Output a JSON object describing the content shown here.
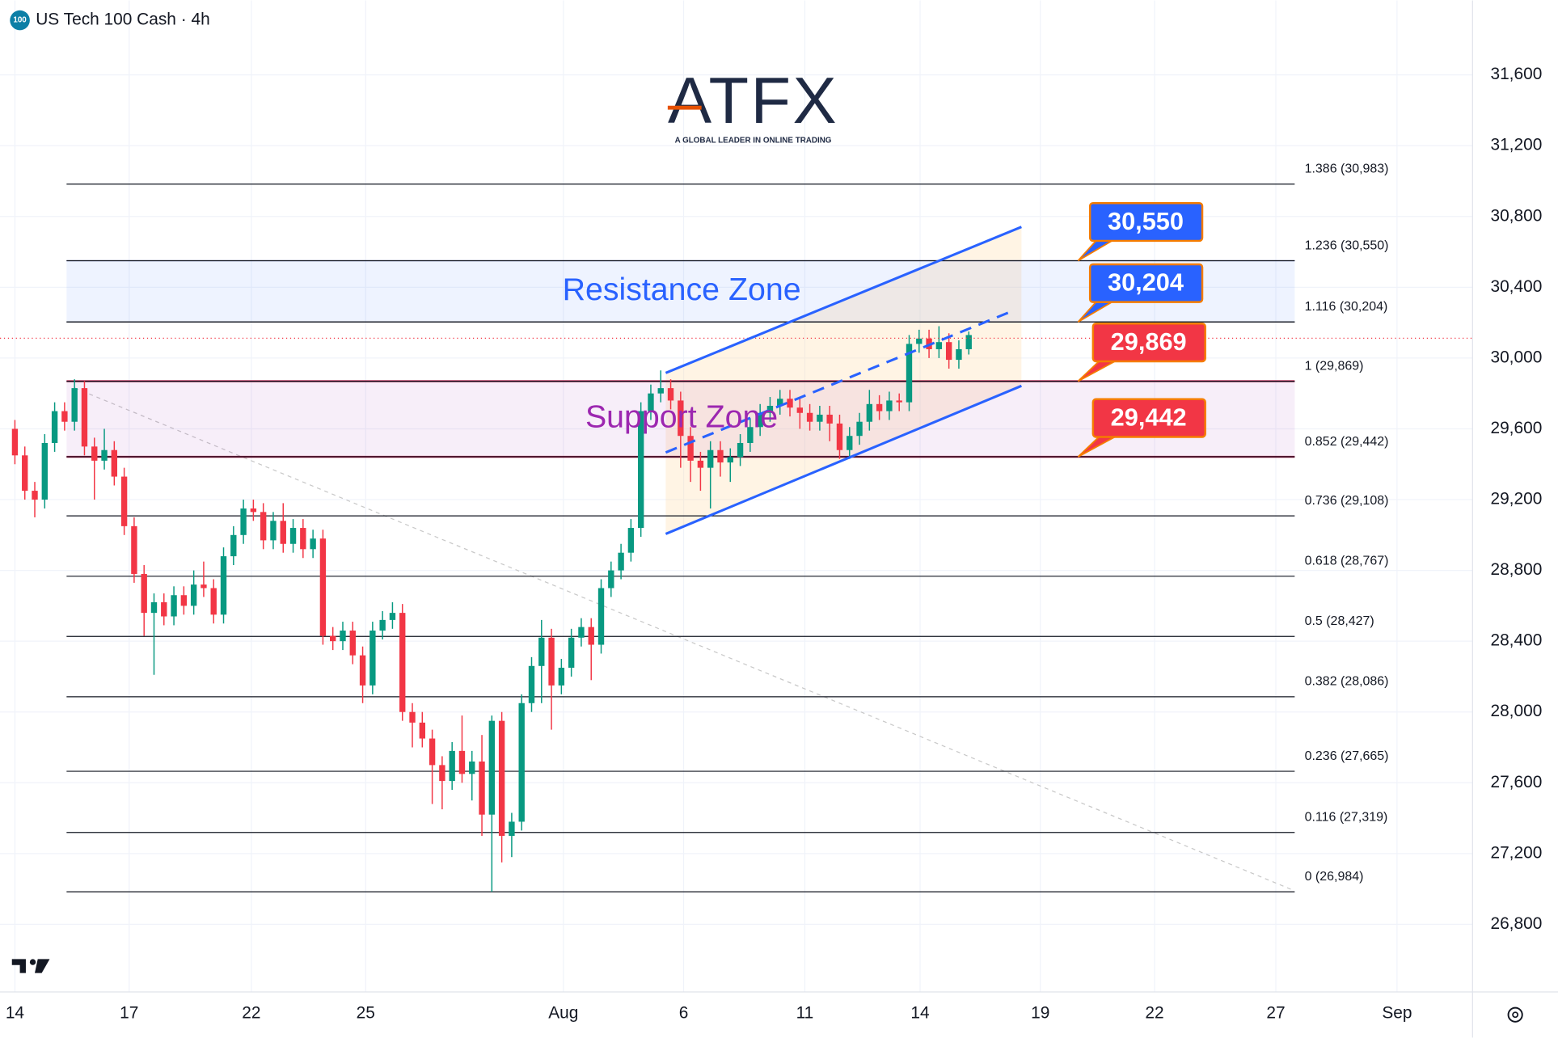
{
  "chart_data": {
    "type": "candlestick",
    "title": "US Tech 100 Cash · 4h",
    "icon_text": "100",
    "up_color": "#089981",
    "down_color": "#f23645",
    "x": [
      0,
      1,
      2,
      3,
      4,
      5,
      6,
      7,
      8,
      9,
      10,
      11,
      12,
      13,
      14,
      15,
      16,
      17,
      18,
      19,
      20,
      21,
      22,
      23,
      24,
      25,
      26,
      27,
      28,
      29,
      30,
      31,
      32,
      33,
      34,
      35,
      36,
      37,
      38,
      39,
      40,
      41,
      42,
      43,
      44,
      45,
      46,
      47,
      48,
      49,
      50,
      51,
      52,
      53,
      54,
      55,
      56,
      57,
      58,
      59,
      60,
      61,
      62,
      63,
      64,
      65,
      66,
      67,
      68,
      69,
      70,
      71,
      72,
      73,
      74,
      75,
      76,
      77,
      78,
      79,
      80,
      81,
      82,
      83,
      84,
      85,
      86,
      87,
      88,
      89,
      90,
      91,
      92,
      93,
      94,
      95,
      96
    ],
    "open": [
      29600,
      29450,
      29250,
      29200,
      29520,
      29700,
      29640,
      29830,
      29500,
      29420,
      29480,
      29330,
      29050,
      28780,
      28560,
      28620,
      28540,
      28660,
      28600,
      28720,
      28700,
      28550,
      28880,
      29000,
      29150,
      29130,
      28970,
      29080,
      28950,
      29040,
      28920,
      28980,
      28430,
      28400,
      28460,
      28320,
      28150,
      28460,
      28520,
      28560,
      28000,
      27940,
      27850,
      27700,
      27610,
      27780,
      27650,
      27720,
      27420,
      27950,
      27300,
      27380,
      28050,
      28260,
      28420,
      28150,
      28250,
      28420,
      28480,
      28380,
      28700,
      28800,
      28900,
      29040,
      29700,
      29800,
      29830,
      29760,
      29560,
      29420,
      29380,
      29480,
      29410,
      29440,
      29520,
      29610,
      29690,
      29730,
      29770,
      29720,
      29690,
      29640,
      29680,
      29630,
      29480,
      29560,
      29640,
      29740,
      29700,
      29760,
      29750,
      30080,
      30110,
      30050,
      30090,
      29990,
      30050
    ],
    "high": [
      29650,
      29500,
      29300,
      29570,
      29750,
      29750,
      29880,
      29870,
      29550,
      29600,
      29530,
      29380,
      29100,
      28830,
      28670,
      28670,
      28710,
      28710,
      28800,
      28850,
      28750,
      28930,
      29050,
      29200,
      29200,
      29180,
      29130,
      29180,
      29090,
      29090,
      29030,
      29030,
      28480,
      28510,
      28510,
      28370,
      28510,
      28570,
      28620,
      28610,
      28050,
      28000,
      27900,
      27750,
      27830,
      27980,
      27780,
      27870,
      27980,
      28000,
      27430,
      28100,
      28310,
      28520,
      28470,
      28300,
      28470,
      28530,
      28530,
      28750,
      28850,
      28950,
      29090,
      29750,
      29850,
      29930,
      29880,
      29810,
      29610,
      29470,
      29530,
      29530,
      29490,
      29570,
      29660,
      29740,
      29780,
      29820,
      29820,
      29770,
      29740,
      29730,
      29730,
      29680,
      29610,
      29690,
      29820,
      29790,
      29810,
      29800,
      30130,
      30160,
      30160,
      30180,
      30140,
      30100,
      30150
    ],
    "low": [
      29400,
      29200,
      29100,
      29150,
      29470,
      29590,
      29590,
      29450,
      29200,
      29370,
      29280,
      29000,
      28730,
      28430,
      28210,
      28490,
      28490,
      28550,
      28550,
      28650,
      28500,
      28500,
      28830,
      28950,
      29080,
      28920,
      28920,
      28900,
      28900,
      28870,
      28870,
      28380,
      28350,
      28350,
      28270,
      28050,
      28100,
      28410,
      28470,
      27950,
      27800,
      27800,
      27480,
      27450,
      27560,
      27600,
      27500,
      27300,
      26984,
      27150,
      27180,
      27330,
      28000,
      28050,
      27900,
      28100,
      28200,
      28370,
      28180,
      28330,
      28650,
      28750,
      28850,
      28990,
      29650,
      29750,
      29710,
      29380,
      29300,
      29250,
      29150,
      29330,
      29300,
      29390,
      29470,
      29560,
      29640,
      29680,
      29670,
      29600,
      29590,
      29590,
      29530,
      29430,
      29430,
      29510,
      29590,
      29650,
      29650,
      29700,
      29700,
      30030,
      30000,
      30000,
      29940,
      29940,
      30020
    ],
    "close": [
      29450,
      29250,
      29200,
      29520,
      29700,
      29640,
      29830,
      29500,
      29420,
      29480,
      29330,
      29050,
      28780,
      28560,
      28620,
      28540,
      28660,
      28600,
      28720,
      28700,
      28550,
      28880,
      29000,
      29150,
      29130,
      28970,
      29080,
      28950,
      29040,
      28920,
      28980,
      28430,
      28400,
      28460,
      28320,
      28150,
      28460,
      28520,
      28560,
      28000,
      27940,
      27850,
      27700,
      27610,
      27780,
      27650,
      27720,
      27420,
      27950,
      27300,
      27380,
      28050,
      28260,
      28420,
      28150,
      28250,
      28420,
      28480,
      28380,
      28700,
      28800,
      28900,
      29040,
      29700,
      29800,
      29830,
      29760,
      29560,
      29420,
      29380,
      29480,
      29410,
      29440,
      29520,
      29610,
      29690,
      29730,
      29770,
      29720,
      29690,
      29640,
      29680,
      29630,
      29480,
      29560,
      29640,
      29740,
      29700,
      29760,
      29750,
      30080,
      30110,
      30050,
      30090,
      29990,
      30050,
      30130
    ],
    "xlim": [
      -1.5,
      146.5
    ],
    "xticks": [
      {
        "value": 0,
        "label": "14"
      },
      {
        "value": 11.5,
        "label": "17"
      },
      {
        "value": 23.8,
        "label": "22"
      },
      {
        "value": 35.3,
        "label": "25"
      },
      {
        "value": 55.2,
        "label": "Aug"
      },
      {
        "value": 67.3,
        "label": "6"
      },
      {
        "value": 79.5,
        "label": "11"
      },
      {
        "value": 91.1,
        "label": "14"
      },
      {
        "value": 103.2,
        "label": "19"
      },
      {
        "value": 114.7,
        "label": "22"
      },
      {
        "value": 126.9,
        "label": "27"
      },
      {
        "value": 139.1,
        "label": "Sep"
      }
    ],
    "ylim": [
      26407,
      32021
    ],
    "yticks": [
      {
        "value": 26800,
        "label": "26,800"
      },
      {
        "value": 27200,
        "label": "27,200"
      },
      {
        "value": 27600,
        "label": "27,600"
      },
      {
        "value": 28000,
        "label": "28,000"
      },
      {
        "value": 28400,
        "label": "28,400"
      },
      {
        "value": 28800,
        "label": "28,800"
      },
      {
        "value": 29200,
        "label": "29,200"
      },
      {
        "value": 29600,
        "label": "29,600"
      },
      {
        "value": 30000,
        "label": "30,000"
      },
      {
        "value": 30400,
        "label": "30,400"
      },
      {
        "value": 30800,
        "label": "30,800"
      },
      {
        "value": 31200,
        "label": "31,200"
      },
      {
        "value": 31600,
        "label": "31,600"
      }
    ],
    "grid": true,
    "fib_levels": [
      {
        "value": 30983,
        "label": "1.386 (30,983)"
      },
      {
        "value": 30550,
        "label": "1.236 (30,550)"
      },
      {
        "value": 30204,
        "label": "1.116 (30,204)"
      },
      {
        "value": 29869,
        "label": "1 (29,869)"
      },
      {
        "value": 29442,
        "label": "0.852 (29,442)"
      },
      {
        "value": 29108,
        "label": "0.736 (29,108)"
      },
      {
        "value": 28767,
        "label": "0.618 (28,767)"
      },
      {
        "value": 28427,
        "label": "0.5 (28,427)"
      },
      {
        "value": 28086,
        "label": "0.382 (28,086)"
      },
      {
        "value": 27665,
        "label": "0.236 (27,665)"
      },
      {
        "value": 27319,
        "label": "0.116 (27,319)"
      },
      {
        "value": 26984,
        "label": "0 (26,984)"
      }
    ],
    "zones": [
      {
        "name": "Resistance Zone",
        "low": 30204,
        "high": 30550,
        "color": "#2962ff"
      },
      {
        "name": "Support Zone",
        "low": 29442,
        "high": 29869,
        "color": "#9c27b0"
      }
    ],
    "callouts": [
      {
        "value": 30550,
        "label": "30,550",
        "color": "#2962ff"
      },
      {
        "value": 30204,
        "label": "30,204",
        "color": "#2962ff"
      },
      {
        "value": 29869,
        "label": "29,869",
        "color": "#f23645"
      },
      {
        "value": 29442,
        "label": "29,442",
        "color": "#f23645"
      }
    ]
  },
  "logo": {
    "name": "ATFX",
    "tagline": "A GLOBAL LEADER IN ONLINE TRADING"
  }
}
